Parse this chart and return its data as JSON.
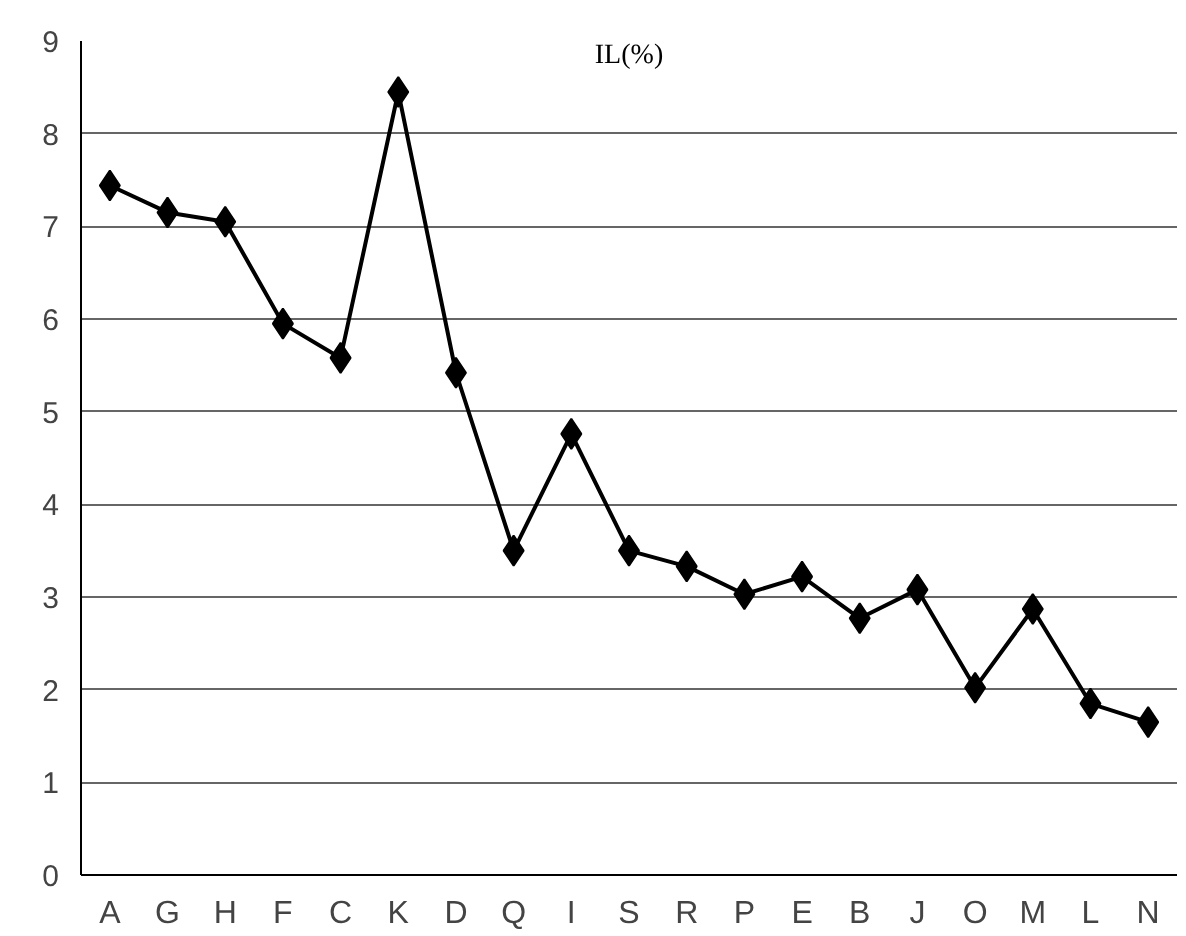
{
  "chart_data": {
    "type": "line",
    "title": "IL(%)",
    "categories": [
      "A",
      "G",
      "H",
      "F",
      "C",
      "K",
      "D",
      "Q",
      "I",
      "S",
      "R",
      "P",
      "E",
      "B",
      "J",
      "O",
      "M",
      "L",
      "N"
    ],
    "series": [
      {
        "color": "#000000",
        "values": [
          7.44,
          7.15,
          7.05,
          5.95,
          5.58,
          8.45,
          5.42,
          3.5,
          4.76,
          3.5,
          3.33,
          3.03,
          3.22,
          2.77,
          3.08,
          2.02,
          2.87,
          1.85,
          1.65
        ]
      }
    ],
    "ylim": [
      0,
      9
    ],
    "yticks": [
      0,
      1,
      2,
      3,
      4,
      5,
      6,
      7,
      8,
      9
    ],
    "grid": "y",
    "marker": "diamond",
    "line_style": "solid"
  }
}
